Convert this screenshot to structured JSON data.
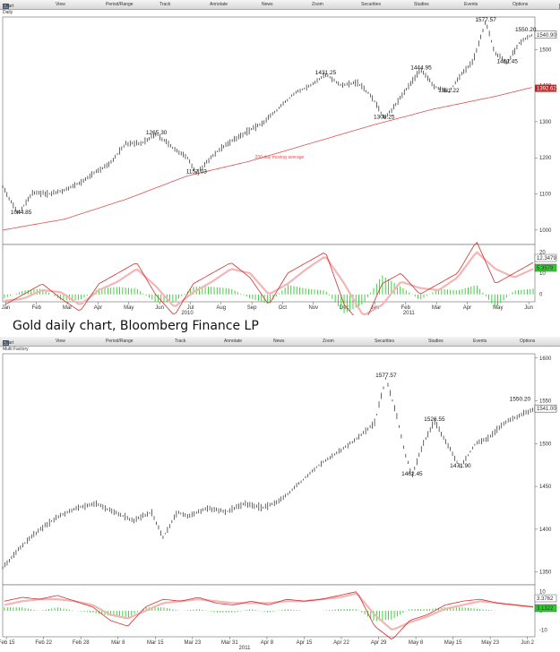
{
  "toolbar": {
    "items": [
      "Chart",
      "View",
      "Period/Range",
      "Track",
      "Annotate",
      "News",
      "Zoom",
      "Securities",
      "Studies",
      "Events"
    ],
    "options_label": "Options"
  },
  "caption": "Gold daily chart, Bloomberg Finance LP",
  "chart_data": [
    {
      "type": "line",
      "title": "Daily",
      "x_ticks": [
        "Jan",
        "Feb",
        "Mar",
        "Apr",
        "May",
        "Jun",
        "Jul",
        "Aug",
        "Sep",
        "Oct",
        "Nov",
        "Dec",
        "Jan",
        "Feb",
        "Mar",
        "Apr",
        "May",
        "Jun"
      ],
      "year_labels": [
        "2010",
        "2011"
      ],
      "y_ticks": [
        1000,
        1100,
        1200,
        1300,
        1400,
        1500
      ],
      "ylim": [
        960,
        1590
      ],
      "series": [
        {
          "name": "price",
          "x": [
            0,
            0.5,
            1,
            1.5,
            2,
            2.6,
            3,
            3.5,
            4,
            4.5,
            5,
            5.5,
            6,
            6.3,
            6.6,
            7,
            7.5,
            8,
            8.5,
            9,
            9.5,
            10,
            10.5,
            11,
            11.5,
            12,
            12.4,
            12.8,
            13.2,
            13.6,
            14,
            14.5,
            14.9,
            15.3,
            15.7,
            16,
            16.4,
            16.8,
            17.2
          ],
          "y": [
            1120,
            1044.85,
            1105,
            1100,
            1110,
            1135,
            1160,
            1185,
            1240,
            1240,
            1265.3,
            1230,
            1200,
            1157.03,
            1185,
            1220,
            1250,
            1275,
            1300,
            1340,
            1380,
            1400,
            1431.25,
            1400,
            1410,
            1370,
            1308.25,
            1350,
            1400,
            1444.95,
            1400,
            1381.22,
            1430,
            1470,
            1577.57,
            1490,
            1462.45,
            1520,
            1540
          ]
        },
        {
          "name": "200 day moving average",
          "x": [
            0,
            2,
            4,
            6,
            8,
            10,
            12,
            14,
            16,
            17.2
          ],
          "y": [
            1000,
            1030,
            1085,
            1150,
            1190,
            1240,
            1290,
            1335,
            1370,
            1395
          ]
        }
      ],
      "annotations": [
        {
          "label": "1044.85",
          "x": 0.6,
          "y": 1044.85
        },
        {
          "label": "1265.30",
          "x": 5.0,
          "y": 1265.3
        },
        {
          "label": "1157.03",
          "x": 6.3,
          "y": 1157.03
        },
        {
          "label": "1431.25",
          "x": 10.5,
          "y": 1431.25
        },
        {
          "label": "1308.25",
          "x": 12.4,
          "y": 1308.25
        },
        {
          "label": "1444.95",
          "x": 13.6,
          "y": 1444.95
        },
        {
          "label": "1381.22",
          "x": 14.5,
          "y": 1381.22
        },
        {
          "label": "1577.57",
          "x": 15.7,
          "y": 1577.57
        },
        {
          "label": "1462.45",
          "x": 16.4,
          "y": 1462.45
        },
        {
          "label": "1550.20",
          "x": 17.0,
          "y": 1550.2
        }
      ],
      "ma_label": "200 day moving average",
      "last_price": "1540.90",
      "ma_last": "1392.62",
      "indicator": {
        "y_ticks": [
          20,
          10,
          0
        ],
        "labels": [
          "12.3479",
          "5.3579"
        ],
        "line1": [
          -5,
          0,
          5,
          -2,
          -8,
          5,
          10,
          15,
          0,
          -10,
          5,
          10,
          15,
          8,
          -5,
          10,
          15,
          20,
          -5,
          -15,
          5,
          10,
          0,
          5,
          10,
          25,
          5,
          10,
          15
        ],
        "line2": [
          -3,
          -2,
          2,
          1,
          -5,
          2,
          6,
          12,
          4,
          -6,
          1,
          6,
          12,
          10,
          0,
          5,
          12,
          18,
          5,
          -10,
          -5,
          6,
          3,
          2,
          8,
          20,
          12,
          8,
          12
        ]
      }
    },
    {
      "type": "line",
      "title": "Multi Factory",
      "x_ticks": [
        "Feb 15",
        "Feb 22",
        "Feb 28",
        "Mar 8",
        "Mar 15",
        "Mar 23",
        "Mar 31",
        "Apr 8",
        "Apr 15",
        "Apr 22",
        "Apr 29",
        "May 8",
        "May 15",
        "May 23",
        "Jun 2"
      ],
      "year_labels": [
        "2011"
      ],
      "y_ticks": [
        1350,
        1400,
        1450,
        1500,
        1550,
        1600
      ],
      "ylim": [
        1335,
        1605
      ],
      "series": [
        {
          "name": "price",
          "x": [
            0,
            0.5,
            1,
            1.5,
            2,
            2.5,
            3,
            3.5,
            4,
            4.3,
            4.7,
            5,
            5.5,
            6,
            6.5,
            7,
            7.5,
            8,
            8.5,
            9,
            9.5,
            10,
            10.3,
            10.6,
            10.8,
            11,
            11.3,
            11.6,
            12,
            12.3,
            12.7,
            13,
            13.5,
            14,
            14.3
          ],
          "y": [
            1355,
            1380,
            1400,
            1415,
            1425,
            1430,
            1420,
            1410,
            1420,
            1390,
            1420,
            1415,
            1425,
            1420,
            1430,
            1425,
            1435,
            1455,
            1475,
            1490,
            1505,
            1525,
            1577.57,
            1530,
            1490,
            1462.45,
            1500,
            1526.55,
            1495,
            1471.9,
            1500,
            1505,
            1525,
            1535,
            1541
          ]
        }
      ],
      "annotations": [
        {
          "label": "1577.57",
          "x": 10.3,
          "y": 1577.57
        },
        {
          "label": "1462.45",
          "x": 11.0,
          "y": 1462.45
        },
        {
          "label": "1526.55",
          "x": 11.6,
          "y": 1526.55
        },
        {
          "label": "1471.90",
          "x": 12.3,
          "y": 1471.9
        },
        {
          "label": "1550.20",
          "x": 13.9,
          "y": 1550.2
        }
      ],
      "last_price": "1541.00",
      "indicator": {
        "y_ticks": [
          10,
          0,
          -10
        ],
        "labels": [
          "3.3762",
          "3.1322"
        ],
        "line1": [
          5,
          7,
          6,
          8,
          5,
          2,
          -5,
          -8,
          2,
          6,
          5,
          7,
          4,
          3,
          5,
          3,
          6,
          5,
          6,
          8,
          10,
          -8,
          -15,
          -5,
          -2,
          3,
          5,
          6,
          4,
          3,
          2
        ],
        "line2": [
          3,
          5,
          6,
          6,
          5,
          3,
          -2,
          -4,
          0,
          4,
          5,
          6,
          5,
          4,
          4,
          4,
          5,
          5,
          6,
          7,
          9,
          -2,
          -10,
          -6,
          -3,
          1,
          3,
          5,
          4,
          3,
          2
        ]
      }
    }
  ]
}
